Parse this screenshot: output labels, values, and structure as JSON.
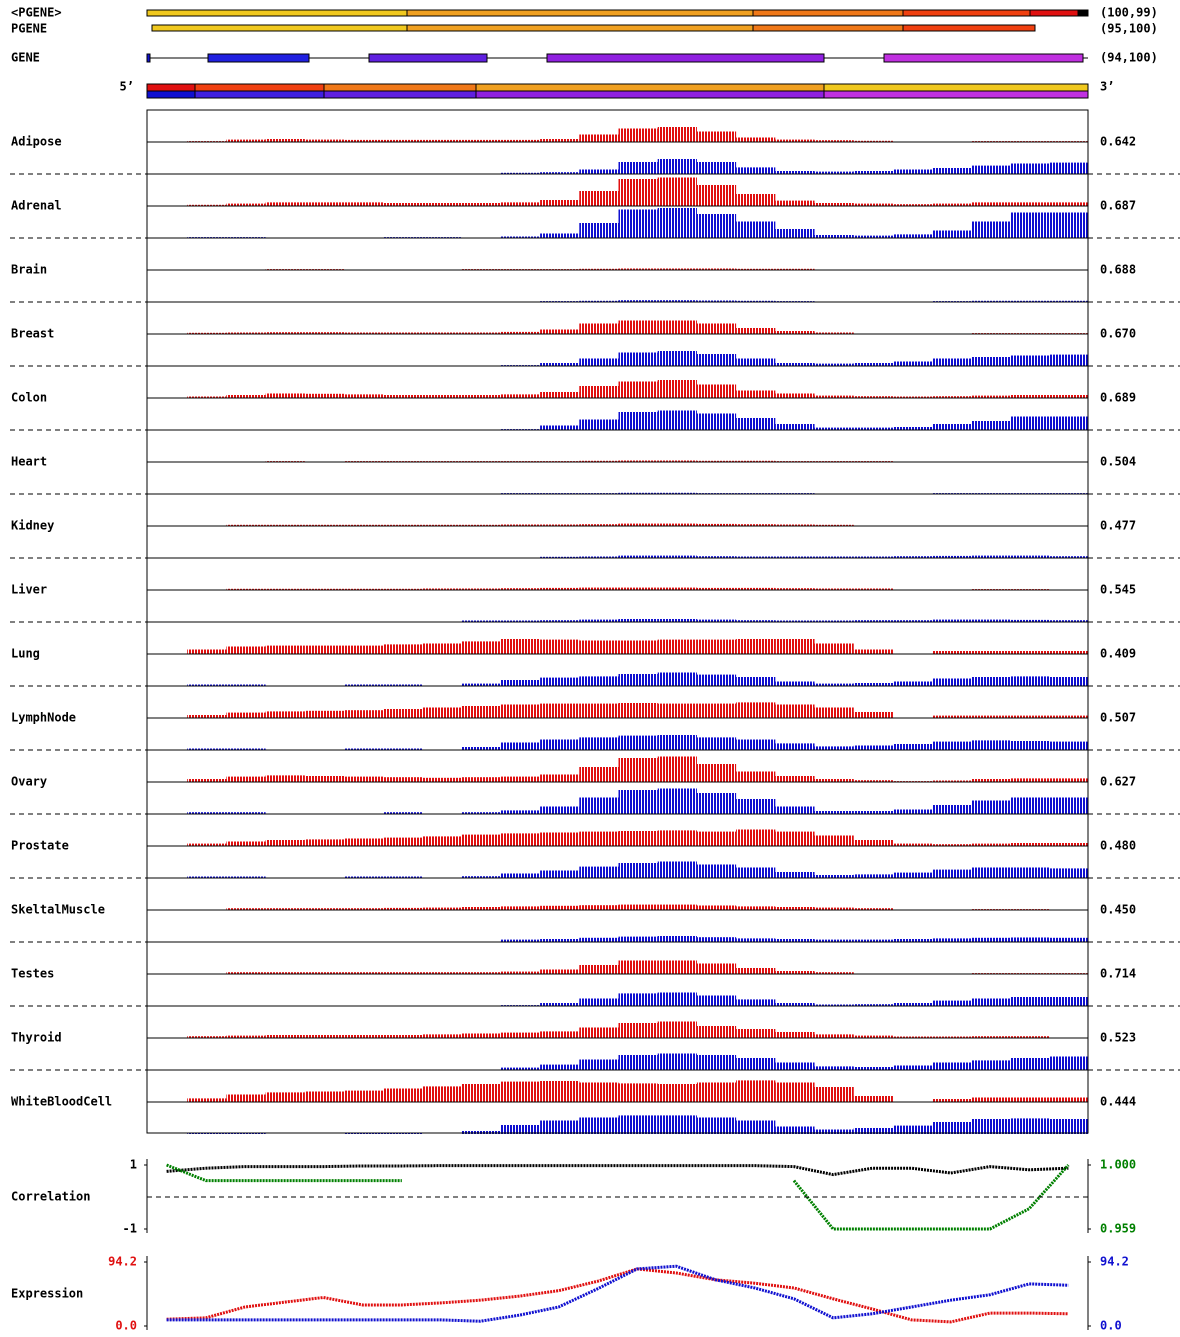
{
  "chart_data": {
    "type": "expression-profile",
    "header": {
      "pgene_outer": "<PGENE>",
      "pgene_outer_score": "(100,99)",
      "pgene": "PGENE",
      "pgene_score": "(95,100)",
      "gene": "GENE",
      "gene_score": "(94,100)",
      "five_prime": "5’",
      "three_prime": "3’"
    },
    "red_color": "#e01010",
    "blue_color": "#1010d0",
    "tracks": [
      {
        "name": "Adipose",
        "score": "0.642",
        "red": [
          null,
          3,
          8,
          10,
          8,
          7,
          7,
          7,
          7,
          7,
          10,
          25,
          45,
          50,
          35,
          15,
          8,
          6,
          4,
          null,
          null,
          3,
          3,
          3
        ],
        "blue": [
          null,
          null,
          null,
          null,
          null,
          null,
          null,
          null,
          null,
          4,
          6,
          15,
          40,
          50,
          40,
          22,
          10,
          8,
          10,
          15,
          20,
          28,
          35,
          38
        ]
      },
      {
        "name": "Adrenal",
        "score": "0.687",
        "red": [
          null,
          4,
          8,
          12,
          12,
          12,
          10,
          10,
          10,
          12,
          20,
          50,
          90,
          95,
          70,
          40,
          18,
          10,
          8,
          6,
          8,
          12,
          12,
          12
        ],
        "blue": [
          null,
          3,
          3,
          null,
          null,
          null,
          3,
          3,
          null,
          5,
          15,
          50,
          95,
          100,
          80,
          55,
          30,
          10,
          8,
          12,
          25,
          55,
          85,
          85
        ]
      },
      {
        "name": "Brain",
        "score": "0.688",
        "red": [
          null,
          null,
          null,
          3,
          3,
          null,
          null,
          null,
          3,
          3,
          3,
          4,
          5,
          5,
          5,
          4,
          4,
          null,
          null,
          null,
          null,
          null,
          null,
          null
        ],
        "blue": [
          null,
          null,
          null,
          null,
          null,
          null,
          null,
          null,
          null,
          null,
          3,
          4,
          6,
          6,
          5,
          4,
          3,
          null,
          null,
          null,
          3,
          4,
          4,
          4
        ]
      },
      {
        "name": "Breast",
        "score": "0.670",
        "red": [
          null,
          4,
          5,
          6,
          6,
          5,
          5,
          5,
          5,
          7,
          15,
          35,
          45,
          45,
          35,
          20,
          10,
          5,
          null,
          null,
          null,
          3,
          3,
          3
        ],
        "blue": [
          null,
          null,
          null,
          null,
          null,
          null,
          null,
          null,
          null,
          3,
          10,
          25,
          45,
          50,
          40,
          25,
          10,
          8,
          10,
          15,
          25,
          30,
          35,
          38
        ]
      },
      {
        "name": "Colon",
        "score": "0.689",
        "red": [
          null,
          5,
          10,
          15,
          14,
          12,
          10,
          10,
          10,
          12,
          20,
          40,
          55,
          60,
          45,
          25,
          15,
          8,
          6,
          5,
          6,
          8,
          10,
          10
        ],
        "blue": [
          null,
          null,
          null,
          null,
          null,
          null,
          null,
          null,
          null,
          3,
          15,
          35,
          60,
          65,
          55,
          40,
          20,
          8,
          8,
          10,
          20,
          30,
          45,
          45
        ]
      },
      {
        "name": "Heart",
        "score": "0.504",
        "red": [
          null,
          null,
          null,
          3,
          null,
          3,
          3,
          3,
          3,
          3,
          3,
          4,
          5,
          5,
          4,
          4,
          3,
          3,
          3,
          null,
          null,
          null,
          null,
          null
        ],
        "blue": [
          null,
          null,
          null,
          null,
          null,
          null,
          null,
          null,
          null,
          3,
          3,
          3,
          4,
          4,
          3,
          3,
          3,
          null,
          null,
          null,
          3,
          3,
          3,
          3
        ]
      },
      {
        "name": "Kidney",
        "score": "0.477",
        "red": [
          null,
          null,
          4,
          4,
          4,
          4,
          4,
          4,
          4,
          5,
          5,
          6,
          8,
          8,
          7,
          6,
          5,
          4,
          null,
          null,
          null,
          null,
          null,
          null
        ],
        "blue": [
          null,
          null,
          null,
          null,
          null,
          null,
          null,
          null,
          null,
          null,
          4,
          5,
          8,
          8,
          6,
          5,
          5,
          5,
          5,
          6,
          7,
          8,
          8,
          6
        ]
      },
      {
        "name": "Liver",
        "score": "0.545",
        "red": [
          null,
          null,
          4,
          4,
          4,
          4,
          4,
          5,
          5,
          6,
          7,
          8,
          8,
          8,
          7,
          7,
          6,
          5,
          5,
          null,
          null,
          3,
          3,
          null
        ],
        "blue": [
          null,
          null,
          null,
          null,
          null,
          null,
          null,
          null,
          5,
          5,
          6,
          8,
          10,
          10,
          8,
          6,
          5,
          5,
          6,
          6,
          8,
          8,
          7,
          6
        ]
      },
      {
        "name": "Lung",
        "score": "0.409",
        "red": [
          null,
          15,
          25,
          28,
          28,
          28,
          32,
          35,
          42,
          50,
          48,
          45,
          45,
          48,
          48,
          50,
          50,
          35,
          15,
          null,
          10,
          10,
          10,
          10
        ],
        "blue": [
          null,
          5,
          5,
          null,
          null,
          5,
          5,
          null,
          8,
          20,
          28,
          32,
          40,
          45,
          38,
          30,
          15,
          8,
          10,
          15,
          25,
          30,
          32,
          30
        ]
      },
      {
        "name": "LymphNode",
        "score": "0.507",
        "red": [
          null,
          10,
          18,
          22,
          24,
          26,
          30,
          35,
          40,
          45,
          48,
          48,
          50,
          48,
          48,
          52,
          45,
          35,
          20,
          null,
          8,
          8,
          8,
          8
        ],
        "blue": [
          null,
          5,
          5,
          null,
          null,
          5,
          5,
          null,
          10,
          25,
          35,
          42,
          48,
          50,
          42,
          35,
          22,
          12,
          15,
          20,
          28,
          32,
          30,
          28
        ]
      },
      {
        "name": "Ovary",
        "score": "0.627",
        "red": [
          null,
          10,
          18,
          22,
          20,
          18,
          16,
          14,
          16,
          18,
          25,
          50,
          80,
          85,
          60,
          35,
          20,
          10,
          6,
          3,
          5,
          10,
          12,
          12
        ],
        "blue": [
          null,
          6,
          6,
          null,
          null,
          null,
          6,
          null,
          6,
          12,
          25,
          55,
          80,
          85,
          70,
          50,
          25,
          10,
          10,
          15,
          30,
          45,
          55,
          55
        ]
      },
      {
        "name": "Prostate",
        "score": "0.480",
        "red": [
          null,
          8,
          15,
          20,
          22,
          25,
          28,
          32,
          38,
          42,
          45,
          48,
          50,
          52,
          48,
          55,
          48,
          35,
          20,
          8,
          6,
          8,
          10,
          10
        ],
        "blue": [
          null,
          5,
          5,
          null,
          null,
          5,
          5,
          null,
          6,
          15,
          25,
          38,
          50,
          55,
          45,
          35,
          20,
          10,
          12,
          18,
          28,
          35,
          35,
          32
        ]
      },
      {
        "name": "SkeltalMuscle",
        "score": "0.450",
        "red": [
          null,
          null,
          6,
          6,
          6,
          6,
          7,
          8,
          10,
          12,
          14,
          16,
          18,
          18,
          15,
          12,
          10,
          8,
          6,
          null,
          null,
          3,
          3,
          null
        ],
        "blue": [
          null,
          null,
          null,
          null,
          null,
          null,
          null,
          null,
          null,
          8,
          10,
          14,
          18,
          20,
          16,
          12,
          10,
          8,
          8,
          10,
          12,
          14,
          15,
          14
        ]
      },
      {
        "name": "Testes",
        "score": "0.714",
        "red": [
          null,
          null,
          6,
          6,
          6,
          6,
          6,
          6,
          6,
          8,
          15,
          30,
          45,
          45,
          35,
          20,
          10,
          6,
          null,
          null,
          null,
          3,
          3,
          3
        ],
        "blue": [
          null,
          null,
          null,
          null,
          null,
          null,
          null,
          null,
          null,
          3,
          10,
          25,
          42,
          45,
          35,
          22,
          10,
          5,
          6,
          10,
          18,
          25,
          30,
          30
        ]
      },
      {
        "name": "Thyroid",
        "score": "0.523",
        "red": [
          null,
          6,
          8,
          10,
          10,
          10,
          10,
          12,
          15,
          18,
          22,
          35,
          50,
          55,
          40,
          30,
          20,
          12,
          8,
          5,
          5,
          6,
          6,
          null
        ],
        "blue": [
          null,
          null,
          null,
          null,
          null,
          null,
          null,
          null,
          null,
          8,
          18,
          35,
          50,
          55,
          50,
          40,
          25,
          12,
          10,
          15,
          25,
          32,
          40,
          45
        ]
      },
      {
        "name": "WhiteBloodCell",
        "score": "0.444",
        "red": [
          null,
          12,
          25,
          32,
          35,
          38,
          45,
          52,
          60,
          68,
          70,
          65,
          62,
          60,
          65,
          72,
          65,
          50,
          20,
          null,
          10,
          15,
          15,
          15
        ],
        "blue": [
          null,
          5,
          5,
          null,
          null,
          5,
          5,
          null,
          10,
          30,
          45,
          55,
          62,
          62,
          55,
          45,
          25,
          15,
          20,
          28,
          40,
          50,
          52,
          50
        ]
      }
    ],
    "correlation": {
      "label": "Correlation",
      "ylim": [
        -1,
        1
      ],
      "yticks": [
        -1,
        1
      ],
      "y2lim": [
        0.959,
        1.0
      ],
      "y2ticks": [
        {
          "value": 0.959,
          "label": "0.959"
        },
        {
          "value": 1.0,
          "label": "1.000"
        }
      ],
      "y2color": "#008000",
      "series": [
        {
          "color": "#000000",
          "values": [
            0.8,
            0.9,
            0.95,
            0.95,
            0.95,
            0.97,
            0.97,
            0.98,
            0.98,
            0.98,
            0.98,
            0.98,
            0.98,
            0.98,
            0.98,
            0.98,
            0.95,
            0.7,
            0.9,
            0.9,
            0.75,
            0.95,
            0.85,
            0.9
          ]
        },
        {
          "color": "#008000",
          "axis": "y2",
          "values": [
            1.0,
            0.99,
            0.99,
            0.99,
            0.99,
            0.99,
            0.99,
            null,
            null,
            null,
            null,
            null,
            null,
            null,
            null,
            null,
            0.99,
            0.959,
            0.959,
            0.959,
            0.959,
            0.959,
            0.972,
            1.0
          ]
        }
      ]
    },
    "expression": {
      "label": "Expression",
      "ylim": [
        0,
        94.2
      ],
      "yticks": [
        {
          "value": 0,
          "label": "0.0"
        },
        {
          "value": 94.2,
          "label": "94.2"
        }
      ],
      "y2lim": [
        0,
        94.2
      ],
      "y2ticks": [
        {
          "value": 0,
          "label": "0.0"
        },
        {
          "value": 94.2,
          "label": "94.2"
        }
      ],
      "series": [
        {
          "color": "#e01010",
          "values": [
            10,
            12,
            28,
            35,
            42,
            31,
            31,
            34,
            38,
            44,
            52,
            66,
            84,
            78,
            68,
            63,
            56,
            40,
            25,
            9,
            6,
            19,
            19,
            18
          ]
        },
        {
          "color": "#1010d0",
          "axis": "y2",
          "values": [
            9,
            9,
            9,
            9,
            9,
            9,
            9,
            9,
            7,
            16,
            28,
            55,
            84,
            88,
            68,
            56,
            40,
            12,
            18,
            28,
            38,
            46,
            62,
            60
          ]
        }
      ]
    }
  }
}
